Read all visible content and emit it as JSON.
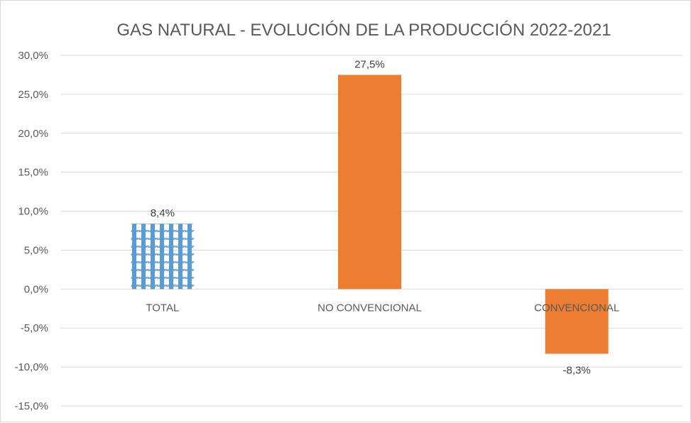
{
  "chart_data": {
    "type": "bar",
    "title": "GAS NATURAL - EVOLUCIÓN DE LA PRODUCCIÓN 2022-2021",
    "xlabel": "",
    "ylabel": "",
    "categories": [
      "TOTAL",
      "NO CONVENCIONAL",
      "CONVENCIONAL"
    ],
    "values": [
      8.4,
      27.5,
      -8.3
    ],
    "data_labels": [
      "8,4%",
      "27,5%",
      "-8,3%"
    ],
    "bar_styles": [
      "pattern",
      "solid",
      "solid"
    ],
    "colors": [
      "#5b9bd5",
      "#ed7d31",
      "#ed7d31"
    ],
    "ylim": [
      -15,
      30
    ],
    "yticks": [
      30,
      25,
      20,
      15,
      10,
      5,
      0,
      -5,
      -10,
      -15
    ],
    "ytick_labels": [
      "30,0%",
      "25,0%",
      "20,0%",
      "15,0%",
      "10,0%",
      "5,0%",
      "0,0%",
      "-5,0%",
      "-10,0%",
      "-15,0%"
    ],
    "grid": true,
    "legend": "none"
  }
}
